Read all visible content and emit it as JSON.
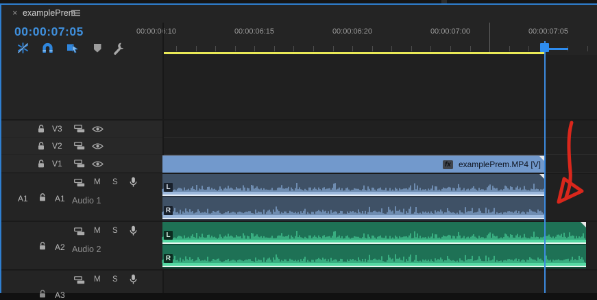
{
  "panel": {
    "close_label": "×",
    "title": "examplePrem"
  },
  "timecode": "00:00:07:05",
  "toolbar": {
    "icons": [
      "nest-insert-icon",
      "snap-icon",
      "linked-selection-icon",
      "add-marker-icon",
      "timeline-settings-icon"
    ]
  },
  "ruler": {
    "labels": [
      "00:00:06:10",
      "00:00:06:15",
      "00:00:06:20",
      "00:00:07:00",
      "00:00:07:05"
    ]
  },
  "video_tracks": [
    {
      "id": "V3"
    },
    {
      "id": "V2"
    },
    {
      "id": "V1"
    }
  ],
  "audio_tracks": [
    {
      "id": "A1",
      "name": "Audio 1",
      "source_patch": "A1"
    },
    {
      "id": "A2",
      "name": "Audio 2",
      "source_patch": ""
    },
    {
      "id": "A3",
      "name": "",
      "source_patch": ""
    }
  ],
  "audio_controls": {
    "mute": "M",
    "solo": "S"
  },
  "video_clip": {
    "fx_badge": "fx",
    "label": "examplePrem.MP4 [V]"
  },
  "audio_clip_channels": {
    "left": "L",
    "right": "R"
  },
  "colors": {
    "accent_blue": "#2f86dd",
    "timecode_blue": "#3f8fdc",
    "work_area_yellow": "#e9e957",
    "video_clip_blue": "#7299cc",
    "audio1_bg": "#3f5166",
    "audio1_wave": "#83a6d1",
    "audio1_baseline": "#9cb8dc",
    "audio2_bg": "#1e7155",
    "audio2_wave": "#44c893",
    "audio2_baseline": "#55d8a2",
    "playhead_blue": "#2e8cef",
    "annotation_red": "#d9271c"
  }
}
